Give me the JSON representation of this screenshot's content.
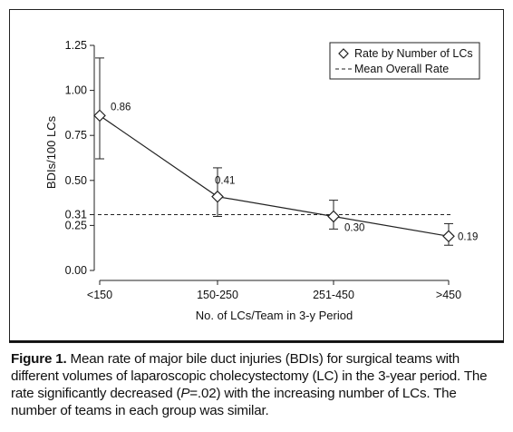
{
  "chart_data": {
    "type": "line",
    "categories": [
      "<150",
      "150-250",
      "251-450",
      ">450"
    ],
    "series": [
      {
        "name": "Rate by Number of LCs",
        "values": [
          0.86,
          0.41,
          0.3,
          0.19
        ],
        "error_low": [
          0.62,
          0.3,
          0.23,
          0.14
        ],
        "error_high": [
          1.18,
          0.57,
          0.39,
          0.26
        ],
        "point_labels": [
          "0.86",
          "0.41",
          "0.30",
          "0.19"
        ]
      }
    ],
    "reference_line": {
      "name": "Mean Overall Rate",
      "value": 0.31
    },
    "xlabel": "No. of LCs/Team in 3-y Period",
    "ylabel": "BDIs/100 LCs",
    "ylim": [
      0,
      1.25
    ],
    "yticks": [
      0.0,
      0.25,
      0.31,
      0.5,
      0.75,
      1.0,
      1.25
    ],
    "ytick_labels": [
      "0.00",
      "0.25",
      "0.31",
      "0.50",
      "0.75",
      "1.00",
      "1.25"
    ],
    "legend_position": "top-right",
    "grid": false
  },
  "caption": {
    "label": "Figure 1.",
    "text": " Mean rate of major bile duct injuries (BDIs) for surgical teams with different volumes of laparoscopic cholecystectomy (LC) in the 3-year period. The rate significantly decreased (",
    "p_italic": "P",
    "p_rest": "=.02) with the increasing number of LCs. The number of teams in each group was similar."
  }
}
